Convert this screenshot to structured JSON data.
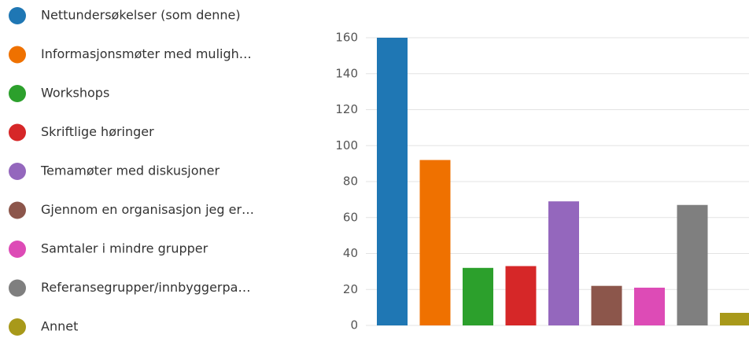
{
  "chart_data": {
    "type": "bar",
    "categories": [
      "Nettundersøkelser (som denne)",
      "Informasjonsmøter med muligh…",
      "Workshops",
      "Skriftlige høringer",
      "Temamøter med diskusjoner",
      "Gjennom en organisasjon jeg er…",
      "Samtaler i mindre grupper",
      "Referansegrupper/innbyggerpa…",
      "Annet"
    ],
    "values": [
      160,
      92,
      32,
      33,
      69,
      22,
      21,
      67,
      7
    ],
    "colors": [
      "#1f77b4",
      "#ef7100",
      "#2ca02c",
      "#d62728",
      "#9467bd",
      "#8c564b",
      "#dd4bb6",
      "#7f7f7f",
      "#a8991a"
    ],
    "ylim": [
      0,
      160
    ],
    "yticks": [
      0,
      20,
      40,
      60,
      80,
      100,
      120,
      140,
      160
    ],
    "grid": true,
    "legend": "left"
  }
}
